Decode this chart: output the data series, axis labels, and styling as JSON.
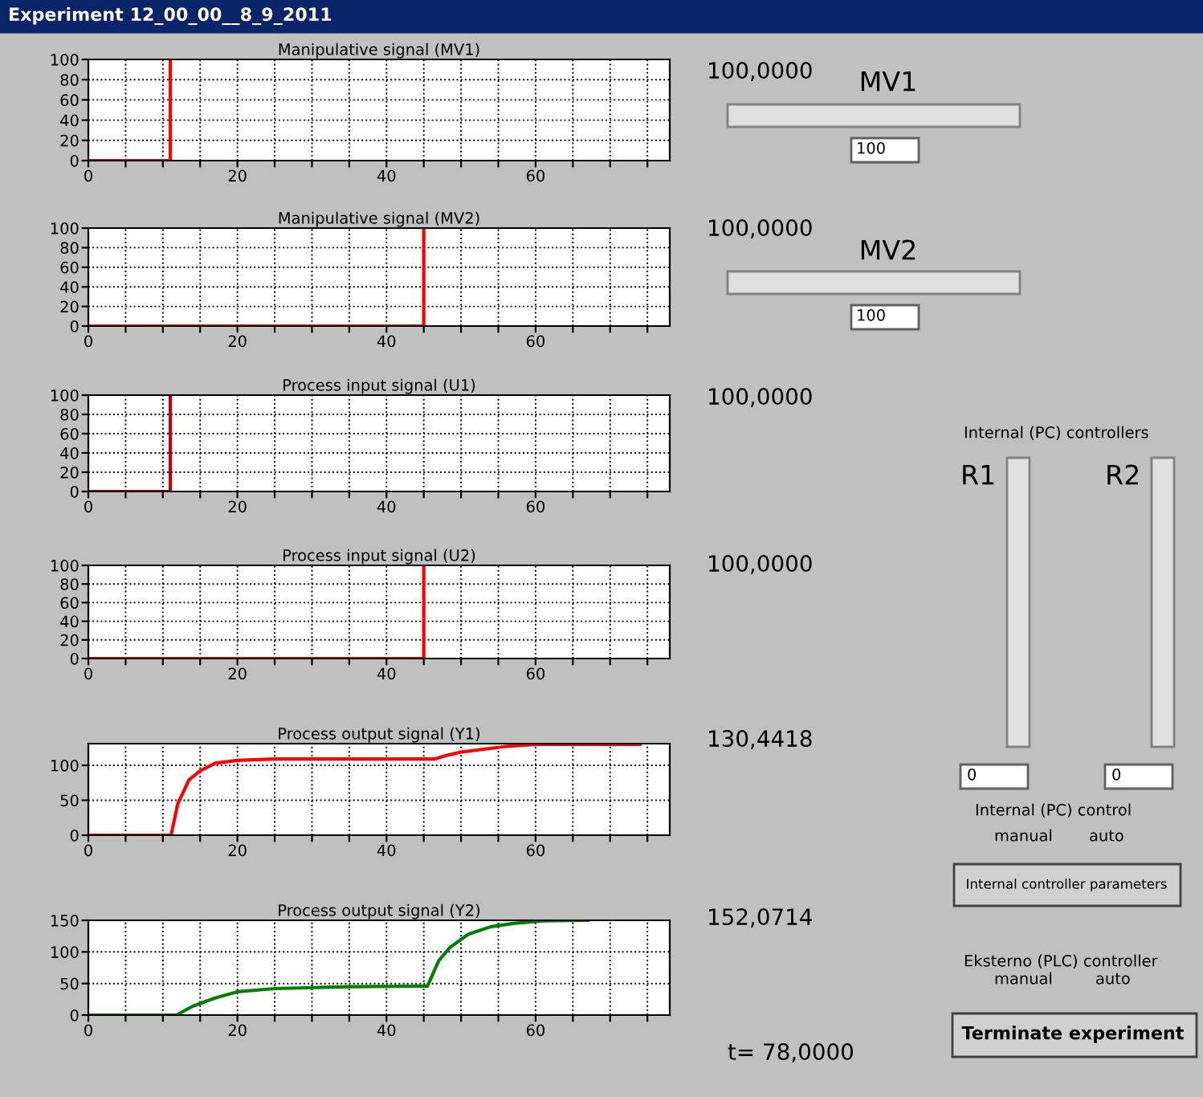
{
  "chart_data": [
    {
      "type": "line",
      "title": "Manipulative signal (MV1)",
      "xlim": [
        0,
        78
      ],
      "ylim": [
        0,
        100
      ],
      "xticks": [
        0,
        {
          "value": 5,
          "label": null
        },
        {
          "value": 10,
          "label": null
        },
        {
          "value": 15,
          "label": null
        },
        20,
        {
          "value": 25,
          "label": null
        },
        {
          "value": 30,
          "label": null
        },
        {
          "value": 35,
          "label": null
        },
        40,
        {
          "value": 45,
          "label": null
        },
        {
          "value": 50,
          "label": null
        },
        {
          "value": 55,
          "label": null
        },
        60,
        {
          "value": 65,
          "label": null
        },
        {
          "value": 70,
          "label": null
        },
        {
          "value": 75,
          "label": null
        }
      ],
      "yticks": [
        0,
        20,
        40,
        60,
        80,
        100
      ],
      "grid": true,
      "line_style": "solid",
      "legend": false,
      "series": [
        {
          "color": "#ff0000",
          "x": [
            0,
            11,
            11
          ],
          "values": [
            0,
            0,
            100
          ]
        }
      ]
    },
    {
      "type": "line",
      "title": "Manipulative signal (MV2)",
      "xlim": [
        0,
        78
      ],
      "ylim": [
        0,
        100
      ],
      "xticks": [
        0,
        {
          "value": 5,
          "label": null
        },
        {
          "value": 10,
          "label": null
        },
        {
          "value": 15,
          "label": null
        },
        20,
        {
          "value": 25,
          "label": null
        },
        {
          "value": 30,
          "label": null
        },
        {
          "value": 35,
          "label": null
        },
        40,
        {
          "value": 45,
          "label": null
        },
        {
          "value": 50,
          "label": null
        },
        {
          "value": 55,
          "label": null
        },
        60,
        {
          "value": 65,
          "label": null
        },
        {
          "value": 70,
          "label": null
        },
        {
          "value": 75,
          "label": null
        }
      ],
      "yticks": [
        0,
        20,
        40,
        60,
        80,
        100
      ],
      "grid": true,
      "line_style": "solid",
      "legend": false,
      "series": [
        {
          "color": "#ff0000",
          "x": [
            0,
            45,
            45
          ],
          "values": [
            0,
            0,
            100
          ]
        }
      ]
    },
    {
      "type": "line",
      "title": "Process input signal (U1)",
      "xlim": [
        0,
        78
      ],
      "ylim": [
        0,
        100
      ],
      "xticks": [
        0,
        {
          "value": 5,
          "label": null
        },
        {
          "value": 10,
          "label": null
        },
        {
          "value": 15,
          "label": null
        },
        20,
        {
          "value": 25,
          "label": null
        },
        {
          "value": 30,
          "label": null
        },
        {
          "value": 35,
          "label": null
        },
        40,
        {
          "value": 45,
          "label": null
        },
        {
          "value": 50,
          "label": null
        },
        {
          "value": 55,
          "label": null
        },
        60,
        {
          "value": 65,
          "label": null
        },
        {
          "value": 70,
          "label": null
        },
        {
          "value": 75,
          "label": null
        }
      ],
      "yticks": [
        0,
        20,
        40,
        60,
        80,
        100
      ],
      "grid": true,
      "line_style": "solid",
      "legend": false,
      "series": [
        {
          "color": "#c00000",
          "x": [
            0,
            11,
            11
          ],
          "values": [
            0,
            0,
            100
          ]
        }
      ]
    },
    {
      "type": "line",
      "title": "Process input signal (U2)",
      "xlim": [
        0,
        78
      ],
      "ylim": [
        0,
        100
      ],
      "xticks": [
        0,
        {
          "value": 5,
          "label": null
        },
        {
          "value": 10,
          "label": null
        },
        {
          "value": 15,
          "label": null
        },
        20,
        {
          "value": 25,
          "label": null
        },
        {
          "value": 30,
          "label": null
        },
        {
          "value": 35,
          "label": null
        },
        40,
        {
          "value": 45,
          "label": null
        },
        {
          "value": 50,
          "label": null
        },
        {
          "value": 55,
          "label": null
        },
        60,
        {
          "value": 65,
          "label": null
        },
        {
          "value": 70,
          "label": null
        },
        {
          "value": 75,
          "label": null
        }
      ],
      "yticks": [
        0,
        20,
        40,
        60,
        80,
        100
      ],
      "grid": true,
      "line_style": "solid",
      "legend": false,
      "series": [
        {
          "color": "#ff0000",
          "x": [
            0,
            45,
            45
          ],
          "values": [
            0,
            0,
            100
          ]
        }
      ]
    },
    {
      "type": "line",
      "title": "Process output signal (Y1)",
      "xlim": [
        0,
        78
      ],
      "ylim": [
        0,
        131
      ],
      "xticks": [
        0,
        {
          "value": 5,
          "label": null
        },
        {
          "value": 10,
          "label": null
        },
        {
          "value": 15,
          "label": null
        },
        20,
        {
          "value": 25,
          "label": null
        },
        {
          "value": 30,
          "label": null
        },
        {
          "value": 35,
          "label": null
        },
        40,
        {
          "value": 45,
          "label": null
        },
        {
          "value": 50,
          "label": null
        },
        {
          "value": 55,
          "label": null
        },
        60,
        {
          "value": 65,
          "label": null
        },
        {
          "value": 70,
          "label": null
        },
        {
          "value": 75,
          "label": null
        }
      ],
      "yticks": [
        0,
        50,
        100
      ],
      "grid": true,
      "line_style": "solid",
      "legend": false,
      "series": [
        {
          "color": "#ff0000",
          "x": [
            0,
            11.1,
            12,
            13.5,
            15,
            17,
            20,
            25,
            45,
            46.4,
            48,
            50,
            53,
            56,
            60,
            74
          ],
          "values": [
            0,
            0,
            45,
            79,
            92,
            103,
            107,
            109,
            109,
            109,
            114,
            119,
            123,
            127,
            130,
            130
          ]
        }
      ]
    },
    {
      "type": "line",
      "title": "Process output signal (Y2)",
      "xlim": [
        0,
        78
      ],
      "ylim": [
        0,
        150
      ],
      "xticks": [
        0,
        {
          "value": 5,
          "label": null
        },
        {
          "value": 10,
          "label": null
        },
        {
          "value": 15,
          "label": null
        },
        20,
        {
          "value": 25,
          "label": null
        },
        {
          "value": 30,
          "label": null
        },
        {
          "value": 35,
          "label": null
        },
        40,
        {
          "value": 45,
          "label": null
        },
        {
          "value": 50,
          "label": null
        },
        {
          "value": 55,
          "label": null
        },
        60,
        {
          "value": 65,
          "label": null
        },
        {
          "value": 70,
          "label": null
        },
        {
          "value": 75,
          "label": null
        }
      ],
      "yticks": [
        0,
        50,
        100,
        150
      ],
      "grid": true,
      "line_style": "solid",
      "legend": false,
      "series": [
        {
          "color": "#008000",
          "x": [
            0,
            11.8,
            14,
            17,
            20,
            25,
            35,
            45,
            45.5,
            47,
            48.5,
            51,
            54,
            57,
            61,
            67
          ],
          "values": [
            0,
            0,
            14,
            27,
            37,
            42,
            45,
            46,
            46,
            86,
            107,
            128,
            140,
            145,
            149,
            150
          ]
        }
      ]
    },
    {
      "type": "other",
      "title": "Experiment 12_00_00__8_9_2011",
      "annotations": [
        "100,0000",
        "MV1",
        "100",
        "100,0000",
        "MV2",
        "100",
        "100,0000",
        "100,0000",
        "130,4418",
        "152,0714",
        "t= 78,0000",
        "Internal (PC) controllers",
        "R1",
        "R2",
        "0",
        "0",
        "Internal (PC) control",
        "manual",
        "auto",
        "Internal controller parameters",
        "Eksterno (PLC) controller",
        "manual",
        "auto",
        "Terminate experiment"
      ]
    }
  ]
}
